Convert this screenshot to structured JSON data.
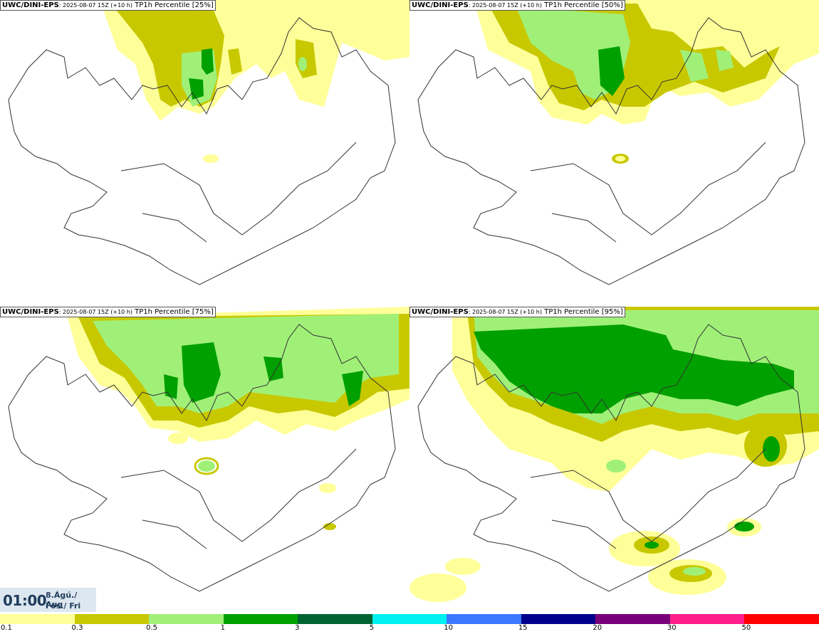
{
  "panels": [
    {
      "model": "UWC/DINI-EPS",
      "run": ": 2025-08-07 15Z (+10 h)",
      "field": " TP1h Percentile [25%]",
      "percentile": 25
    },
    {
      "model": "UWC/DINI-EPS",
      "run": ": 2025-08-07 15Z (+10 h)",
      "field": " TP1h Percentile [50%]",
      "percentile": 50
    },
    {
      "model": "UWC/DINI-EPS",
      "run": ": 2025-08-07 15Z (+10 h)",
      "field": " TP1h Percentile [75%]",
      "percentile": 75
    },
    {
      "model": "UWC/DINI-EPS",
      "run": ": 2025-08-07 15Z (+10 h)",
      "field": " TP1h Percentile [95%]",
      "percentile": 95
    }
  ],
  "valid_time": {
    "time": "01:00",
    "date_line1": "8.Ágú./ Aug",
    "date_line2": "Fös./ Fri"
  },
  "colorbar": {
    "labels": [
      "0.1",
      "0.3",
      "0.5",
      "1",
      "3",
      "5",
      "10",
      "15",
      "20",
      "30",
      "50"
    ],
    "colors": [
      "#ffff99",
      "#c8c800",
      "#a0f078",
      "#00a000",
      "#006432",
      "#00f0f0",
      "#3c78ff",
      "#00008c",
      "#780078",
      "#ff1e8c",
      "#ff0000"
    ]
  }
}
